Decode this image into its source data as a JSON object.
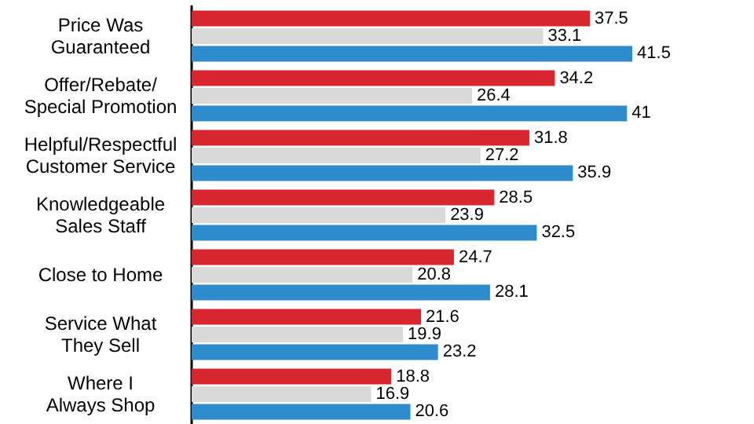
{
  "chart_data": {
    "type": "bar",
    "orientation": "horizontal",
    "categories": [
      "Price Was\nGuaranteed",
      "Offer/Rebate/\nSpecial Promotion",
      "Helpful/Respectful\nCustomer Service",
      "Knowledgeable\nSales Staff",
      "Close to Home",
      "Service What\nThey Sell",
      "Where I\nAlways Shop"
    ],
    "series": [
      {
        "color": "#d7262e",
        "values": [
          37.5,
          34.2,
          31.8,
          28.5,
          24.7,
          21.6,
          18.8
        ]
      },
      {
        "color": "#d9d9d9",
        "values": [
          33.1,
          26.4,
          27.2,
          23.9,
          20.8,
          19.9,
          16.9
        ]
      },
      {
        "color": "#2e8bcc",
        "values": [
          41.5,
          41,
          35.9,
          32.5,
          28.1,
          23.2,
          20.6
        ]
      }
    ],
    "tick_labels": "y",
    "data_labels": true
  }
}
